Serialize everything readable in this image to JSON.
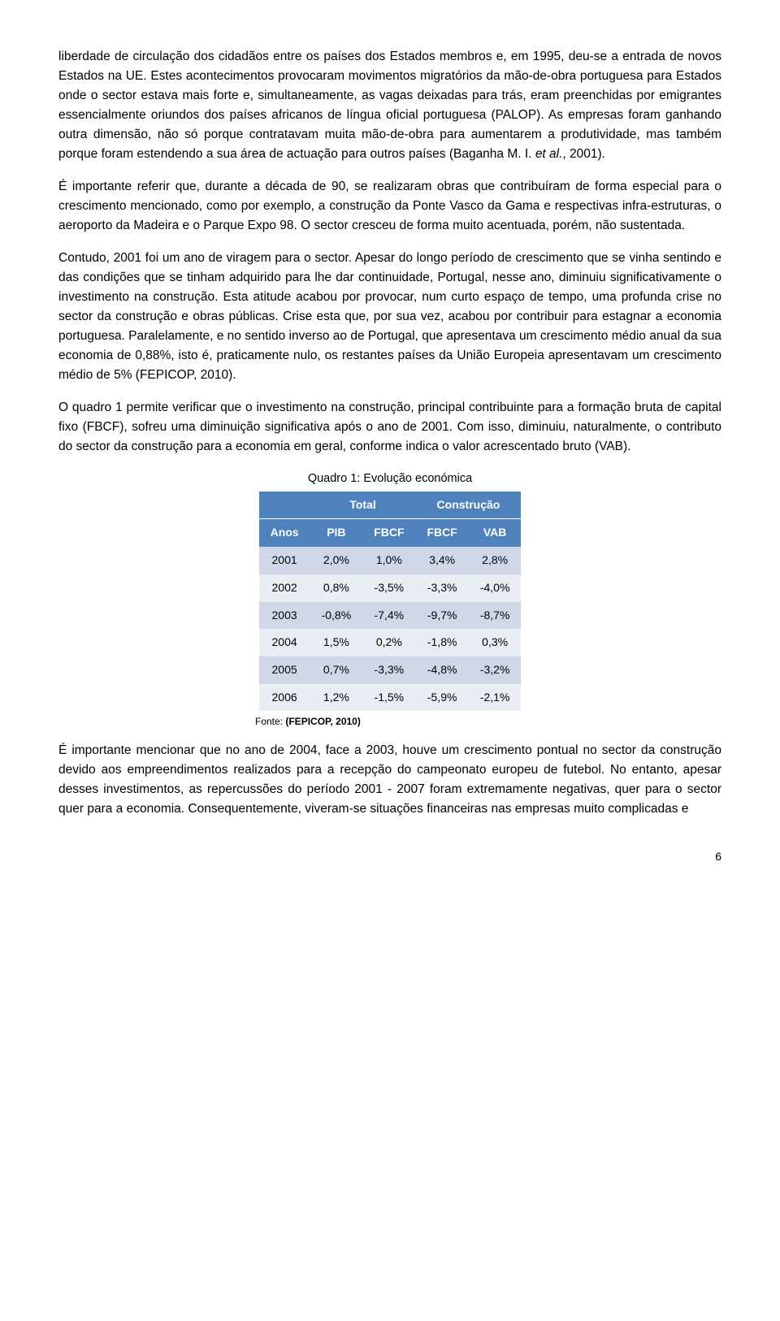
{
  "paragraphs": {
    "p1a": "liberdade de circulação dos cidadãos entre os países dos Estados membros e, em 1995, deu-se a entrada de novos Estados na UE. Estes acontecimentos provocaram movimentos migratórios da mão-de-obra portuguesa para Estados onde o sector estava mais forte e, simultaneamente, as vagas deixadas para trás, eram preenchidas por emigrantes essencialmente oriundos dos países africanos de língua oficial portuguesa (PALOP). As empresas foram ganhando outra dimensão, não só porque contratavam muita mão-de-obra para aumentarem a produtividade, mas também porque foram estendendo a sua área de actuação para outros países (Baganha M. I. ",
    "p1b": "et al.",
    "p1c": ", 2001).",
    "p2": "É importante referir que, durante a década de 90, se realizaram obras que contribuíram de forma especial para o crescimento mencionado, como por exemplo, a construção da Ponte Vasco da Gama e respectivas infra-estruturas, o aeroporto da Madeira e o Parque Expo 98. O sector cresceu de forma muito acentuada, porém, não sustentada.",
    "p3": "Contudo, 2001 foi um ano de viragem para o sector. Apesar do longo período de crescimento que se vinha sentindo e das condições que se tinham adquirido para lhe dar continuidade, Portugal, nesse ano, diminuiu significativamente o investimento na construção. Esta atitude acabou por provocar, num curto espaço de tempo, uma profunda crise no sector da construção e obras públicas. Crise esta que, por sua vez, acabou por contribuir para estagnar a economia portuguesa. Paralelamente, e no sentido inverso ao de Portugal, que apresentava um crescimento médio anual da sua economia de 0,88%, isto é, praticamente nulo, os restantes países da União Europeia apresentavam um crescimento médio de 5% (FEPICOP, 2010).",
    "p4": "O quadro 1 permite verificar que o investimento na construção, principal contribuinte para a formação bruta de capital fixo (FBCF), sofreu uma diminuição significativa após o ano de 2001. Com isso, diminuiu, naturalmente, o contributo do sector da construção para a economia em geral, conforme indica o valor acrescentado bruto (VAB).",
    "p5": "É importante mencionar que no ano de 2004, face a 2003, houve um crescimento pontual no sector da construção devido aos empreendimentos realizados para a recepção do campeonato europeu de futebol. No entanto, apesar desses investimentos, as repercussões do período 2001 - 2007 foram extremamente negativas, quer para o sector quer para a economia. Consequentemente, viveram-se situações financeiras nas empresas muito complicadas e"
  },
  "table": {
    "caption": "Quadro 1: Evolução económica",
    "group_headers": {
      "blank": "",
      "total": "Total",
      "construcao": "Construção"
    },
    "headers": {
      "anos": "Anos",
      "pib": "PIB",
      "fbcf1": "FBCF",
      "fbcf2": "FBCF",
      "vab": "VAB"
    },
    "rows": [
      {
        "year": "2001",
        "pib": "2,0%",
        "fbcf1": "1,0%",
        "fbcf2": "3,4%",
        "vab": "2,8%"
      },
      {
        "year": "2002",
        "pib": "0,8%",
        "fbcf1": "-3,5%",
        "fbcf2": "-3,3%",
        "vab": "-4,0%"
      },
      {
        "year": "2003",
        "pib": "-0,8%",
        "fbcf1": "-7,4%",
        "fbcf2": "-9,7%",
        "vab": "-8,7%"
      },
      {
        "year": "2004",
        "pib": "1,5%",
        "fbcf1": "0,2%",
        "fbcf2": "-1,8%",
        "vab": "0,3%"
      },
      {
        "year": "2005",
        "pib": "0,7%",
        "fbcf1": "-3,3%",
        "fbcf2": "-4,8%",
        "vab": "-3,2%"
      },
      {
        "year": "2006",
        "pib": "1,2%",
        "fbcf1": "-1,5%",
        "fbcf2": "-5,9%",
        "vab": "-2,1%"
      }
    ],
    "source_label": "Fonte: ",
    "source_bold": "(FEPICOP, 2010)",
    "colors": {
      "header_bg": "#4f81bd",
      "header_fg": "#ffffff",
      "band_a": "#d0d8e8",
      "band_b": "#e9edf4"
    }
  },
  "page_number": "6"
}
